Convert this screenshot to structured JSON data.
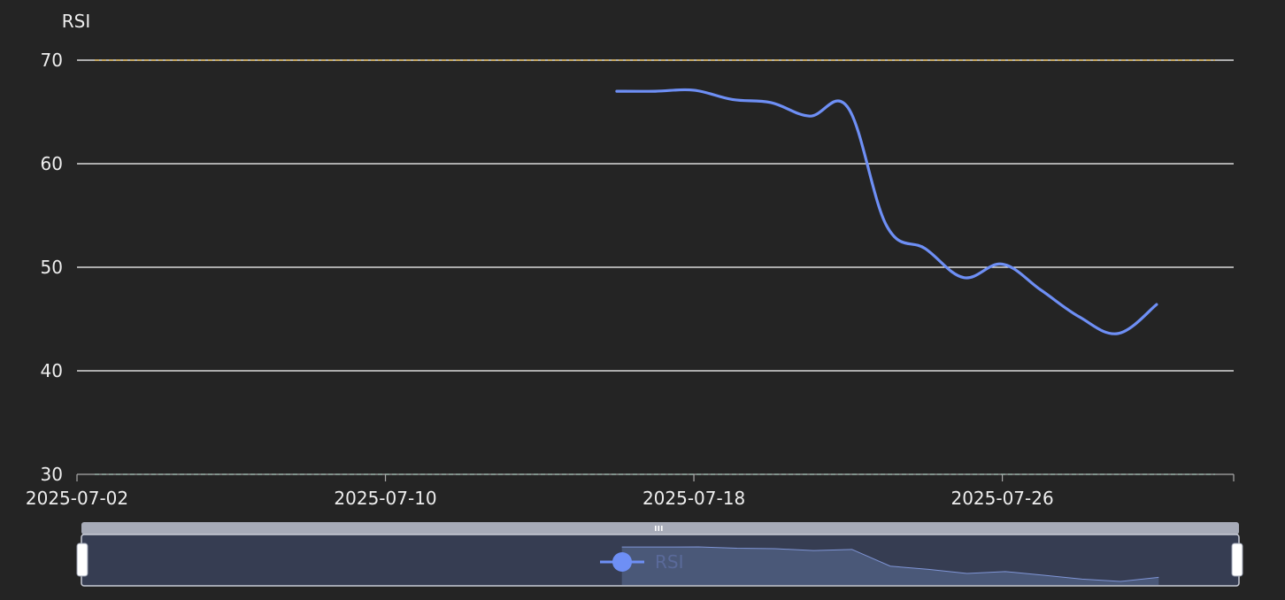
{
  "chart_data": {
    "type": "line",
    "ylabel": "RSI",
    "ylim": [
      30,
      70
    ],
    "y_ticks": [
      30,
      40,
      50,
      60,
      70
    ],
    "x_range": [
      "2025-07-02",
      "2025-08-01"
    ],
    "x_ticks": [
      "2025-07-02",
      "2025-07-10",
      "2025-07-18",
      "2025-07-26"
    ],
    "reference_lines": [
      {
        "value": 70,
        "color": "#e8c060"
      },
      {
        "value": 30,
        "color": "#4caf8a"
      }
    ],
    "legend": "bottom-center",
    "series": [
      {
        "name": "RSI",
        "color": "#6e8ff5",
        "points": [
          {
            "x": "2025-07-16",
            "y": 67.0
          },
          {
            "x": "2025-07-17",
            "y": 67.0
          },
          {
            "x": "2025-07-18",
            "y": 67.1
          },
          {
            "x": "2025-07-19",
            "y": 66.2
          },
          {
            "x": "2025-07-20",
            "y": 65.9
          },
          {
            "x": "2025-07-21",
            "y": 64.6
          },
          {
            "x": "2025-07-22",
            "y": 65.4
          },
          {
            "x": "2025-07-23",
            "y": 54.0
          },
          {
            "x": "2025-07-24",
            "y": 51.8
          },
          {
            "x": "2025-07-25",
            "y": 49.0
          },
          {
            "x": "2025-07-26",
            "y": 50.3
          },
          {
            "x": "2025-07-27",
            "y": 47.8
          },
          {
            "x": "2025-07-28",
            "y": 45.2
          },
          {
            "x": "2025-07-29",
            "y": 43.6
          },
          {
            "x": "2025-07-30",
            "y": 46.4
          }
        ]
      }
    ]
  },
  "data_zoom": {
    "start_date": "2025-07-02",
    "end_date": "2025-08-01"
  }
}
